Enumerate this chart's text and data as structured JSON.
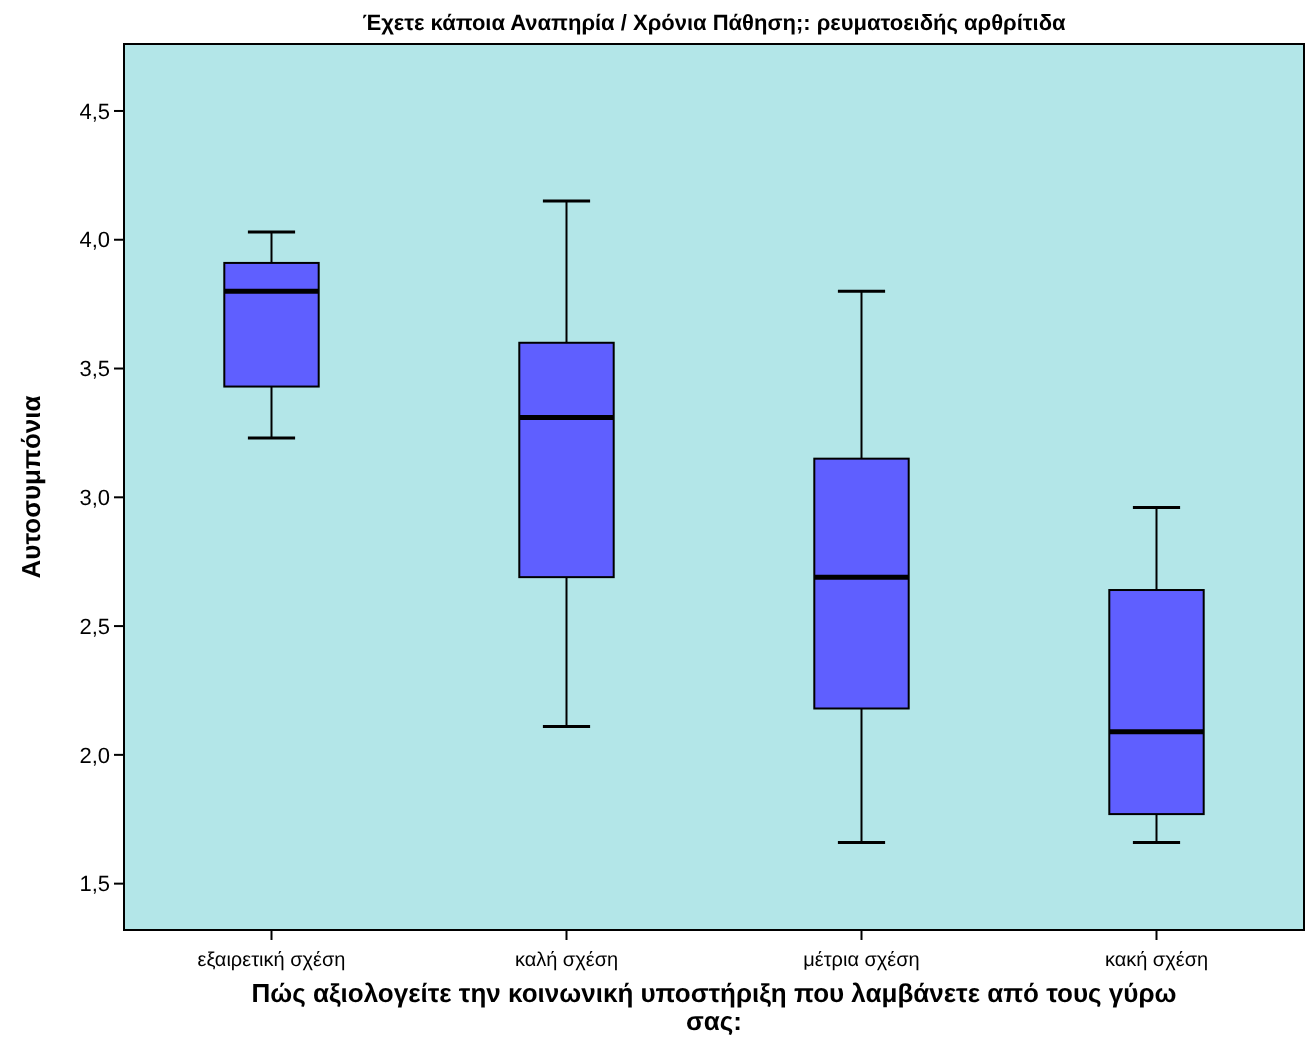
{
  "chart_data": {
    "type": "box",
    "title": "Έχετε κάποια Αναπηρία / Χρόνια Πάθηση;: ρευματοειδής αρθρίτιδα",
    "xlabel": "Πώς αξιολογείτε την κοινωνική υποστήριξη που λαμβάνετε από τους γύρω σας:",
    "ylabel": "Αυτοσυμπόνια",
    "categories": [
      "εξαιρετική σχέση",
      "καλή σχέση",
      "μέτρια σχέση",
      "κακή σχέση"
    ],
    "boxes": [
      {
        "low": 3.23,
        "q1": 3.43,
        "median": 3.8,
        "q3": 3.91,
        "high": 4.03
      },
      {
        "low": 2.11,
        "q1": 2.69,
        "median": 3.31,
        "q3": 3.6,
        "high": 4.15
      },
      {
        "low": 1.66,
        "q1": 2.18,
        "median": 2.69,
        "q3": 3.15,
        "high": 3.8
      },
      {
        "low": 1.66,
        "q1": 1.77,
        "median": 2.09,
        "q3": 2.64,
        "high": 2.96
      }
    ],
    "color": "#5f5fff",
    "ylim": [
      1.32,
      4.76
    ],
    "yticks": [
      {
        "value": 1.5,
        "label": "1,5"
      },
      {
        "value": 2,
        "label": "2,0"
      },
      {
        "value": 2.5,
        "label": "2,5"
      },
      {
        "value": 3,
        "label": "3,0"
      },
      {
        "value": 3.5,
        "label": "3,5"
      },
      {
        "value": 4,
        "label": "4,0"
      },
      {
        "value": 4.5,
        "label": "4,5"
      }
    ],
    "grid": false
  }
}
